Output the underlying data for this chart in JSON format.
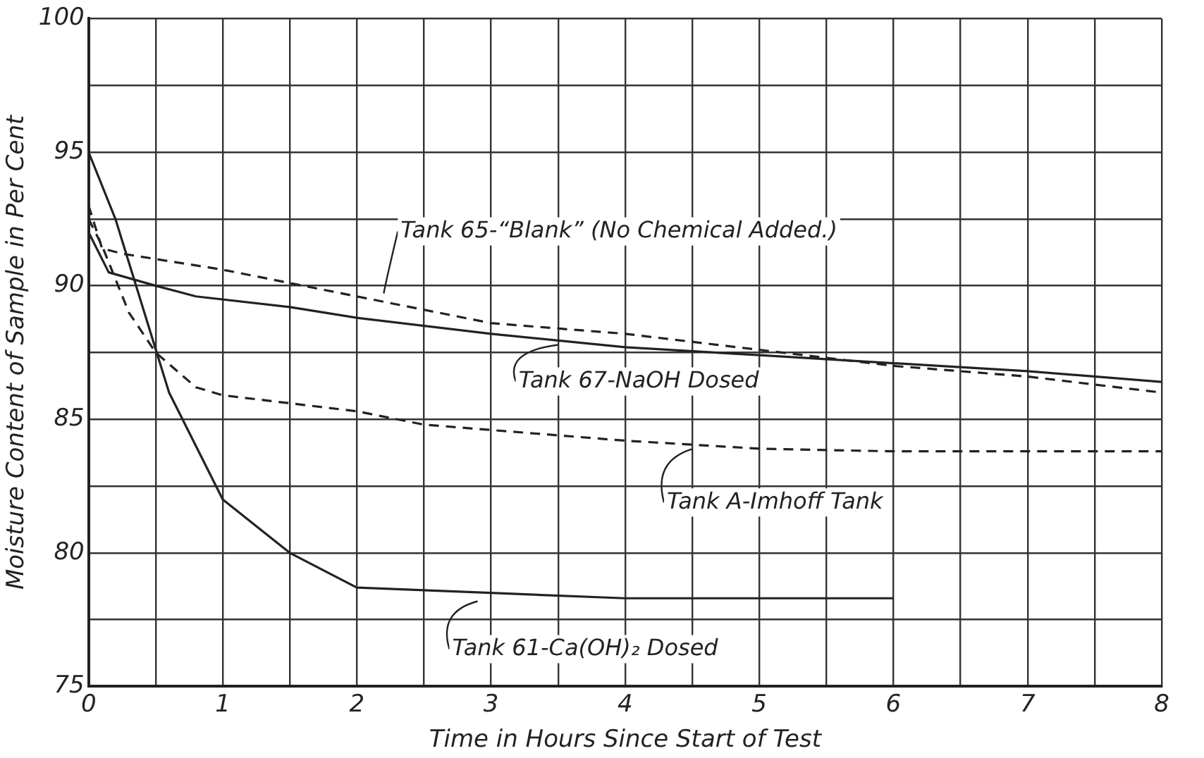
{
  "chart_data": {
    "type": "line",
    "xlabel": "Time in Hours Since Start of Test",
    "ylabel": "Moisture Content of Sample in Per Cent",
    "xlim": [
      0,
      8
    ],
    "ylim": [
      75,
      100
    ],
    "xticks": [
      0,
      {
        "value": 0.5,
        "label": null
      },
      1,
      {
        "value": 1.5,
        "label": null
      },
      2,
      {
        "value": 2.5,
        "label": null
      },
      3,
      {
        "value": 3.5,
        "label": null
      },
      4,
      {
        "value": 4.5,
        "label": null
      },
      5,
      {
        "value": 5.5,
        "label": null
      },
      6,
      {
        "value": 6.5,
        "label": null
      },
      7,
      {
        "value": 7.5,
        "label": null
      },
      8
    ],
    "yticks": [
      75,
      {
        "value": 77.5,
        "label": null
      },
      80,
      {
        "value": 82.5,
        "label": null
      },
      85,
      {
        "value": 87.5,
        "label": null
      },
      90,
      {
        "value": 92.5,
        "label": null
      },
      95,
      {
        "value": 97.5,
        "label": null
      },
      100
    ],
    "grid": true,
    "legend": false,
    "marker": "none",
    "series": [
      {
        "color": "#222222",
        "line_style": "dashed",
        "x": [
          0,
          0.1,
          0.25,
          1,
          1.5,
          2,
          2.5,
          3,
          4,
          5,
          5.5,
          6,
          7,
          8
        ],
        "values": [
          93,
          91.4,
          91.2,
          90.6,
          90.1,
          89.6,
          89.1,
          88.6,
          88.2,
          87.6,
          87.3,
          87.0,
          86.6,
          86.0
        ]
      },
      {
        "color": "#222222",
        "line_style": "solid",
        "x": [
          0,
          0.15,
          0.5,
          0.8,
          1.5,
          2,
          3,
          4,
          5,
          6,
          7,
          8
        ],
        "values": [
          92,
          90.5,
          90.0,
          89.6,
          89.2,
          88.8,
          88.2,
          87.7,
          87.4,
          87.1,
          86.8,
          86.4
        ]
      },
      {
        "color": "#222222",
        "line_style": "dashed",
        "x": [
          0,
          0.1,
          0.3,
          0.5,
          0.8,
          1,
          1.5,
          2,
          2.5,
          3,
          4,
          5,
          6,
          8
        ],
        "values": [
          92.5,
          91.5,
          89,
          87.5,
          86.2,
          85.9,
          85.6,
          85.3,
          84.8,
          84.6,
          84.2,
          83.9,
          83.8,
          83.8
        ]
      },
      {
        "color": "#222222",
        "line_style": "solid",
        "x": [
          0,
          0.2,
          0.6,
          1,
          1.5,
          2,
          3,
          4,
          6
        ],
        "values": [
          95,
          92.5,
          86,
          82,
          80,
          78.7,
          78.5,
          78.3,
          78.3
        ]
      }
    ],
    "annotations": [
      {
        "text": "Tank 65-“Blank” (No Chemical Added.)",
        "x": 2.2,
        "y": 89.5
      },
      {
        "text": "Tank 67-NaOH Dosed",
        "x": 3.5,
        "y": 88.0
      },
      {
        "text": "Tank A-Imhoff Tank",
        "x": 4.5,
        "y": 84.1
      },
      {
        "text": "Tank 61-Ca(OH)₂ Dosed",
        "x": 2.9,
        "y": 78.4
      }
    ]
  }
}
